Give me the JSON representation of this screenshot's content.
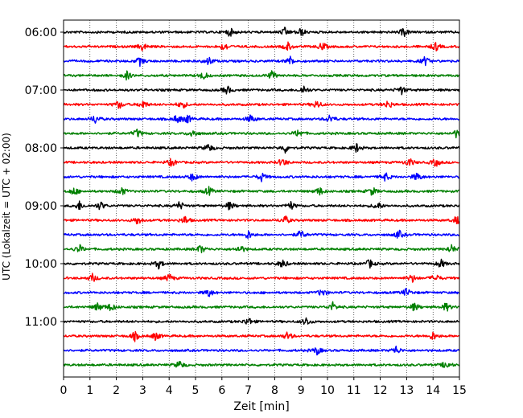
{
  "chart_data": {
    "type": "line",
    "subtype": "helicorder",
    "xlabel": "Zeit  [min]",
    "ylabel": "UTC (Lokalzeit = UTC + 02:00)",
    "xlim": [
      0,
      15
    ],
    "x_ticks": [
      "0",
      "1",
      "2",
      "3",
      "4",
      "5",
      "6",
      "7",
      "8",
      "9",
      "10",
      "11",
      "12",
      "13",
      "14",
      "15"
    ],
    "y_ticks": [
      "06:00",
      "07:00",
      "08:00",
      "09:00",
      "10:00",
      "11:00"
    ],
    "x_grid": "dotted",
    "trace_colors": [
      "#000000",
      "#ff0000",
      "#0000ff",
      "#008000"
    ],
    "traces": [
      {
        "start": "06:00",
        "color": "#000000",
        "events": [
          6.3,
          8.4,
          9.0,
          12.9
        ]
      },
      {
        "start": "06:15",
        "color": "#ff0000",
        "events": [
          3.0,
          6.1,
          8.5,
          9.8,
          14.1
        ]
      },
      {
        "start": "06:30",
        "color": "#0000ff",
        "events": [
          2.9,
          5.5,
          8.6,
          13.7
        ]
      },
      {
        "start": "06:45",
        "color": "#008000",
        "events": [
          2.4,
          5.3,
          7.9
        ]
      },
      {
        "start": "07:00",
        "color": "#000000",
        "events": [
          6.2,
          9.1,
          12.8
        ]
      },
      {
        "start": "07:15",
        "color": "#ff0000",
        "events": [
          2.1,
          3.0,
          4.5,
          9.6,
          12.3
        ]
      },
      {
        "start": "07:30",
        "color": "#0000ff",
        "events": [
          1.2,
          4.3,
          4.7,
          7.1,
          10.1
        ]
      },
      {
        "start": "07:45",
        "color": "#008000",
        "events": [
          2.8,
          4.9,
          8.9,
          14.9
        ]
      },
      {
        "start": "08:00",
        "color": "#000000",
        "events": [
          5.5,
          8.4,
          11.1
        ]
      },
      {
        "start": "08:15",
        "color": "#ff0000",
        "events": [
          4.1,
          8.3,
          13.1,
          14.1
        ]
      },
      {
        "start": "08:30",
        "color": "#0000ff",
        "events": [
          4.9,
          7.5,
          12.2,
          13.4
        ]
      },
      {
        "start": "08:45",
        "color": "#008000",
        "events": [
          0.4,
          2.2,
          5.5,
          9.7,
          11.7
        ]
      },
      {
        "start": "09:00",
        "color": "#000000",
        "events": [
          0.6,
          1.4,
          4.4,
          6.3,
          8.6,
          11.9
        ]
      },
      {
        "start": "09:15",
        "color": "#ff0000",
        "events": [
          2.8,
          4.6,
          8.4,
          14.9
        ]
      },
      {
        "start": "09:30",
        "color": "#0000ff",
        "events": [
          7.0,
          9.0,
          12.7
        ]
      },
      {
        "start": "09:45",
        "color": "#008000",
        "events": [
          0.6,
          5.2,
          6.7,
          14.7
        ]
      },
      {
        "start": "10:00",
        "color": "#000000",
        "events": [
          3.6,
          8.3,
          11.6,
          14.3
        ]
      },
      {
        "start": "10:15",
        "color": "#ff0000",
        "events": [
          1.1,
          4.0,
          13.2,
          14.1
        ]
      },
      {
        "start": "10:30",
        "color": "#0000ff",
        "events": [
          5.5,
          9.8,
          13.0
        ]
      },
      {
        "start": "10:45",
        "color": "#008000",
        "events": [
          1.3,
          1.8,
          10.2,
          13.3,
          14.5
        ]
      },
      {
        "start": "11:00",
        "color": "#000000",
        "events": [
          7.0,
          9.2
        ]
      },
      {
        "start": "11:15",
        "color": "#ff0000",
        "events": [
          2.7,
          3.5,
          8.5,
          14.0
        ]
      },
      {
        "start": "11:30",
        "color": "#0000ff",
        "events": [
          9.6,
          12.6
        ]
      },
      {
        "start": "11:45",
        "color": "#008000",
        "events": [
          4.4,
          14.5
        ]
      }
    ]
  }
}
